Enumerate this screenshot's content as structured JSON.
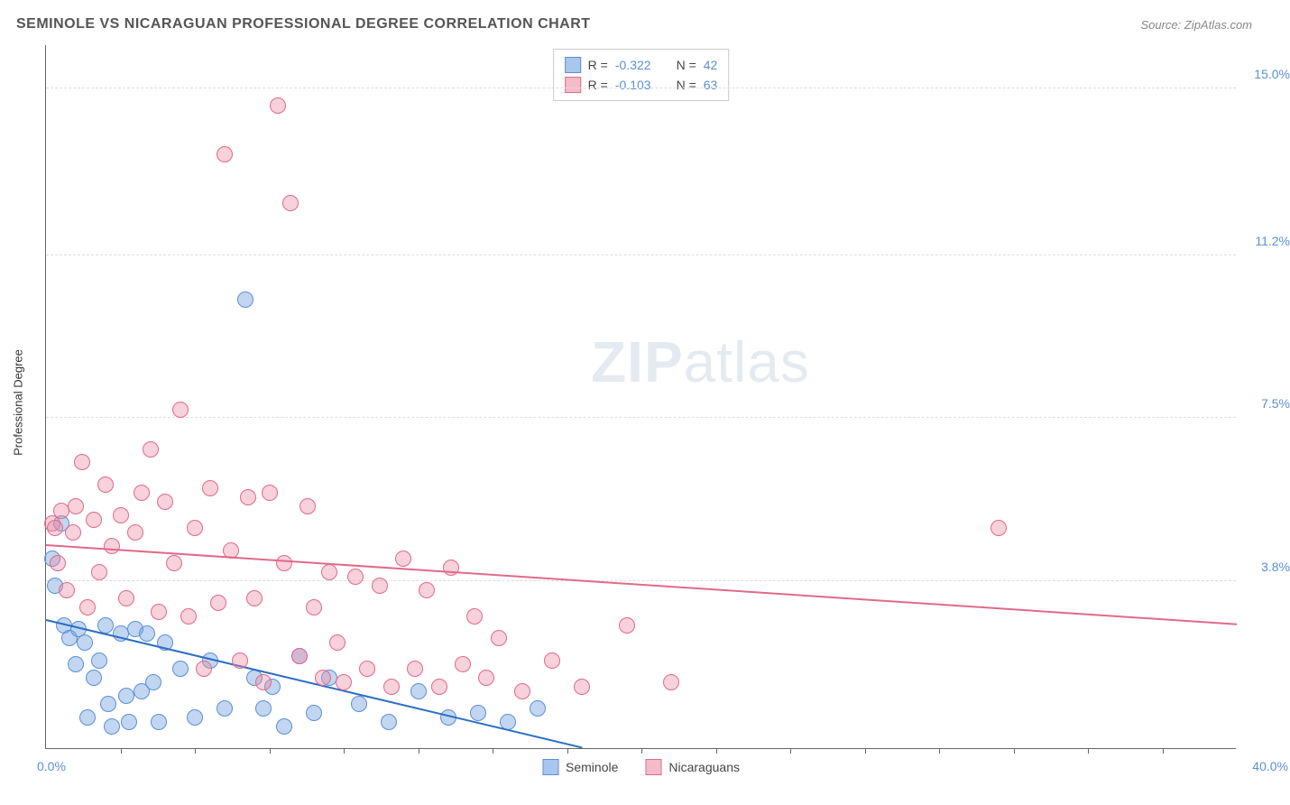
{
  "header": {
    "title": "SEMINOLE VS NICARAGUAN PROFESSIONAL DEGREE CORRELATION CHART",
    "source": "Source: ZipAtlas.com"
  },
  "watermark": {
    "zip": "ZIP",
    "atlas": "atlas"
  },
  "axes": {
    "y_title": "Professional Degree",
    "x_min_label": "0.0%",
    "x_max_label": "40.0%",
    "x_min": 0,
    "x_max": 40,
    "y_min": 0,
    "y_max": 16,
    "y_ticks": [
      {
        "v": 3.8,
        "label": "3.8%"
      },
      {
        "v": 7.5,
        "label": "7.5%"
      },
      {
        "v": 11.2,
        "label": "11.2%"
      },
      {
        "v": 15.0,
        "label": "15.0%"
      }
    ],
    "x_tick_step": 2.5,
    "grid_color": "#dddddd",
    "tick_label_color": "#5b8fd6"
  },
  "legend_top": {
    "rows": [
      {
        "swatch_fill": "#a9c7ec",
        "swatch_border": "#5b8fd6",
        "r_label": "R =",
        "r_val": "-0.322",
        "n_label": "N =",
        "n_val": "42"
      },
      {
        "swatch_fill": "#f4bcca",
        "swatch_border": "#e06a8a",
        "r_label": "R =",
        "r_val": "-0.103",
        "n_label": "N =",
        "n_val": "63"
      }
    ]
  },
  "legend_bottom": {
    "items": [
      {
        "swatch_fill": "#a9c7ec",
        "swatch_border": "#5b8fd6",
        "label": "Seminole"
      },
      {
        "swatch_fill": "#f4bcca",
        "swatch_border": "#e06a8a",
        "label": "Nicaraguans"
      }
    ]
  },
  "series": [
    {
      "name": "Seminole",
      "fill": "rgba(120,165,225,0.45)",
      "stroke": "#5b8fd6",
      "marker_r": 9,
      "trend": {
        "x0": 0,
        "y0": 2.9,
        "x1": 18,
        "y1": 0.0,
        "color": "#2b6fc4"
      },
      "points": [
        [
          0.2,
          4.3
        ],
        [
          0.3,
          3.7
        ],
        [
          0.5,
          5.1
        ],
        [
          0.6,
          2.8
        ],
        [
          0.8,
          2.5
        ],
        [
          1.0,
          1.9
        ],
        [
          1.1,
          2.7
        ],
        [
          1.3,
          2.4
        ],
        [
          1.4,
          0.7
        ],
        [
          1.6,
          1.6
        ],
        [
          1.8,
          2.0
        ],
        [
          2.0,
          2.8
        ],
        [
          2.1,
          1.0
        ],
        [
          2.2,
          0.5
        ],
        [
          2.5,
          2.6
        ],
        [
          2.7,
          1.2
        ],
        [
          2.8,
          0.6
        ],
        [
          3.0,
          2.7
        ],
        [
          3.2,
          1.3
        ],
        [
          3.4,
          2.6
        ],
        [
          3.6,
          1.5
        ],
        [
          3.8,
          0.6
        ],
        [
          4.0,
          2.4
        ],
        [
          4.5,
          1.8
        ],
        [
          5.0,
          0.7
        ],
        [
          5.5,
          2.0
        ],
        [
          6.0,
          0.9
        ],
        [
          6.7,
          10.2
        ],
        [
          7.0,
          1.6
        ],
        [
          7.3,
          0.9
        ],
        [
          7.6,
          1.4
        ],
        [
          8.0,
          0.5
        ],
        [
          8.5,
          2.1
        ],
        [
          9.0,
          0.8
        ],
        [
          9.5,
          1.6
        ],
        [
          10.5,
          1.0
        ],
        [
          11.5,
          0.6
        ],
        [
          12.5,
          1.3
        ],
        [
          13.5,
          0.7
        ],
        [
          14.5,
          0.8
        ],
        [
          15.5,
          0.6
        ],
        [
          16.5,
          0.9
        ]
      ]
    },
    {
      "name": "Nicaraguans",
      "fill": "rgba(235,140,165,0.40)",
      "stroke": "#e06a8a",
      "marker_r": 9,
      "trend": {
        "x0": 0,
        "y0": 4.6,
        "x1": 40,
        "y1": 2.8,
        "color": "#e06a8a"
      },
      "points": [
        [
          0.2,
          5.1
        ],
        [
          0.4,
          4.2
        ],
        [
          0.5,
          5.4
        ],
        [
          0.7,
          3.6
        ],
        [
          0.9,
          4.9
        ],
        [
          1.0,
          5.5
        ],
        [
          1.2,
          6.5
        ],
        [
          1.4,
          3.2
        ],
        [
          1.6,
          5.2
        ],
        [
          1.8,
          4.0
        ],
        [
          2.0,
          6.0
        ],
        [
          2.2,
          4.6
        ],
        [
          2.5,
          5.3
        ],
        [
          2.7,
          3.4
        ],
        [
          3.0,
          4.9
        ],
        [
          3.2,
          5.8
        ],
        [
          3.5,
          6.8
        ],
        [
          3.8,
          3.1
        ],
        [
          4.0,
          5.6
        ],
        [
          4.3,
          4.2
        ],
        [
          4.5,
          7.7
        ],
        [
          4.8,
          3.0
        ],
        [
          5.0,
          5.0
        ],
        [
          5.3,
          1.8
        ],
        [
          5.5,
          5.9
        ],
        [
          5.8,
          3.3
        ],
        [
          6.0,
          13.5
        ],
        [
          6.2,
          4.5
        ],
        [
          6.5,
          2.0
        ],
        [
          6.8,
          5.7
        ],
        [
          7.0,
          3.4
        ],
        [
          7.3,
          1.5
        ],
        [
          7.5,
          5.8
        ],
        [
          7.8,
          14.6
        ],
        [
          8.0,
          4.2
        ],
        [
          8.2,
          12.4
        ],
        [
          8.5,
          2.1
        ],
        [
          8.8,
          5.5
        ],
        [
          9.0,
          3.2
        ],
        [
          9.3,
          1.6
        ],
        [
          9.5,
          4.0
        ],
        [
          9.8,
          2.4
        ],
        [
          10.0,
          1.5
        ],
        [
          10.4,
          3.9
        ],
        [
          10.8,
          1.8
        ],
        [
          11.2,
          3.7
        ],
        [
          11.6,
          1.4
        ],
        [
          12.0,
          4.3
        ],
        [
          12.4,
          1.8
        ],
        [
          12.8,
          3.6
        ],
        [
          13.2,
          1.4
        ],
        [
          13.6,
          4.1
        ],
        [
          14.0,
          1.9
        ],
        [
          14.4,
          3.0
        ],
        [
          14.8,
          1.6
        ],
        [
          15.2,
          2.5
        ],
        [
          16.0,
          1.3
        ],
        [
          17.0,
          2.0
        ],
        [
          18.0,
          1.4
        ],
        [
          19.5,
          2.8
        ],
        [
          21.0,
          1.5
        ],
        [
          32.0,
          5.0
        ],
        [
          0.3,
          5.0
        ]
      ]
    }
  ],
  "style": {
    "background": "#ffffff",
    "point_stroke_width": 1.2
  }
}
